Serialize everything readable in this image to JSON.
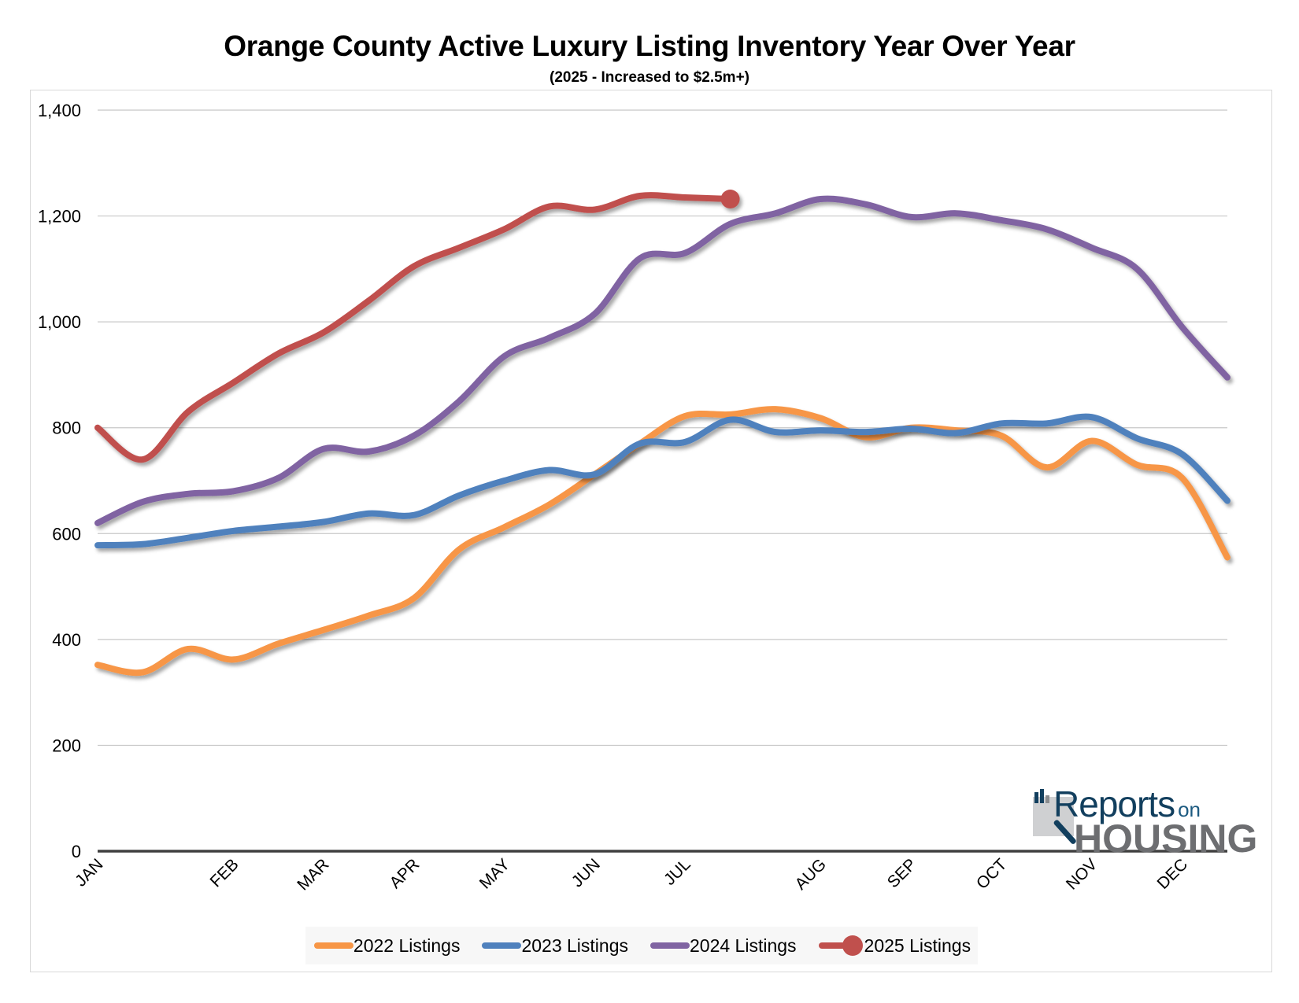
{
  "chart_data": {
    "type": "line",
    "title": "Orange County Active Luxury Listing Inventory Year Over Year",
    "subtitle": "(2025 - Increased to $2.5m+)",
    "xlabel": "",
    "ylabel": "",
    "ylim": [
      0,
      1400
    ],
    "yticks": [
      0,
      200,
      400,
      600,
      800,
      1000,
      1200,
      1400
    ],
    "ytick_labels": [
      "0",
      "200",
      "400",
      "600",
      "800",
      "1,000",
      "1,200",
      "1,400"
    ],
    "grid": true,
    "legend_position": "bottom",
    "point_count": 26,
    "x_labels": [
      {
        "index": 0,
        "label": "JAN"
      },
      {
        "index": 3,
        "label": "FEB"
      },
      {
        "index": 5,
        "label": "MAR"
      },
      {
        "index": 7,
        "label": "APR"
      },
      {
        "index": 9,
        "label": "MAY"
      },
      {
        "index": 11,
        "label": "JUN"
      },
      {
        "index": 13,
        "label": "JUL"
      },
      {
        "index": 16,
        "label": "AUG"
      },
      {
        "index": 18,
        "label": "SEP"
      },
      {
        "index": 20,
        "label": "OCT"
      },
      {
        "index": 22,
        "label": "NOV"
      },
      {
        "index": 24,
        "label": "DEC"
      }
    ],
    "series": [
      {
        "name": "2022 Listings",
        "color": "#F79646",
        "end_marker": false,
        "values": [
          352,
          338,
          382,
          362,
          392,
          418,
          445,
          478,
          570,
          612,
          655,
          712,
          770,
          822,
          825,
          835,
          818,
          782,
          800,
          795,
          785,
          725,
          775,
          730,
          705,
          555
        ]
      },
      {
        "name": "2023 Listings",
        "color": "#4F81BD",
        "end_marker": false,
        "values": [
          578,
          580,
          592,
          605,
          613,
          622,
          638,
          635,
          672,
          700,
          720,
          712,
          770,
          773,
          815,
          792,
          795,
          792,
          798,
          790,
          808,
          808,
          820,
          780,
          750,
          662
        ]
      },
      {
        "name": "2024 Listings",
        "color": "#8064A2",
        "end_marker": false,
        "values": [
          620,
          660,
          675,
          680,
          705,
          760,
          755,
          785,
          850,
          935,
          970,
          1015,
          1120,
          1130,
          1185,
          1205,
          1232,
          1222,
          1198,
          1205,
          1192,
          1175,
          1140,
          1100,
          990,
          895
        ]
      },
      {
        "name": "2025 Listings",
        "color": "#C0504D",
        "end_marker": true,
        "values": [
          800,
          740,
          830,
          885,
          940,
          980,
          1040,
          1105,
          1140,
          1175,
          1218,
          1212,
          1238,
          1235,
          1232
        ]
      }
    ]
  },
  "logo": {
    "word1": "eports",
    "word_on": "on",
    "word2": "HOUSING",
    "initial": "R"
  }
}
